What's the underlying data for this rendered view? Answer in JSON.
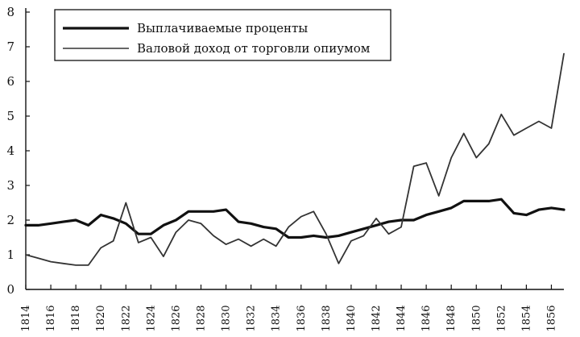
{
  "chart_data": {
    "type": "line",
    "title": "",
    "xlabel": "",
    "ylabel": "",
    "xlim": [
      1814,
      1857
    ],
    "ylim": [
      0,
      8
    ],
    "grid": false,
    "legend_position": "top-left",
    "y_ticks": [
      "0",
      "1",
      "2",
      "3",
      "4",
      "5",
      "6",
      "7",
      "8"
    ],
    "x_ticks": [
      "1814",
      "1816",
      "1818",
      "1820",
      "1822",
      "1824",
      "1826",
      "1828",
      "1830",
      "1832",
      "1834",
      "1836",
      "1838",
      "1840",
      "1842",
      "1844",
      "1846",
      "1848",
      "1850",
      "1852",
      "1854",
      "1856"
    ],
    "series": [
      {
        "name": "Выплачиваемые проценты",
        "color": "#111111",
        "style": "thick",
        "x": [
          1814,
          1815,
          1816,
          1817,
          1818,
          1819,
          1820,
          1821,
          1822,
          1823,
          1824,
          1825,
          1826,
          1827,
          1828,
          1829,
          1830,
          1831,
          1832,
          1833,
          1834,
          1835,
          1836,
          1837,
          1838,
          1839,
          1840,
          1841,
          1842,
          1843,
          1844,
          1845,
          1846,
          1847,
          1848,
          1849,
          1850,
          1851,
          1852,
          1853,
          1854,
          1855,
          1856,
          1857
        ],
        "y": [
          1.85,
          1.85,
          1.9,
          1.95,
          2.0,
          1.85,
          2.15,
          2.05,
          1.9,
          1.6,
          1.6,
          1.85,
          2.0,
          2.25,
          2.25,
          2.25,
          2.3,
          1.95,
          1.9,
          1.8,
          1.75,
          1.5,
          1.5,
          1.55,
          1.5,
          1.55,
          1.65,
          1.75,
          1.85,
          1.95,
          2.0,
          2.0,
          2.15,
          2.25,
          2.35,
          2.55,
          2.55,
          2.55,
          2.6,
          2.2,
          2.15,
          2.3,
          2.35,
          2.3
        ]
      },
      {
        "name": "Валовой доход от торговли опиумом",
        "color": "#333333",
        "style": "thin",
        "x": [
          1814,
          1815,
          1816,
          1817,
          1818,
          1819,
          1820,
          1821,
          1822,
          1823,
          1824,
          1825,
          1826,
          1827,
          1828,
          1829,
          1830,
          1831,
          1832,
          1833,
          1834,
          1835,
          1836,
          1837,
          1838,
          1839,
          1840,
          1841,
          1842,
          1843,
          1844,
          1845,
          1846,
          1847,
          1848,
          1849,
          1850,
          1851,
          1852,
          1853,
          1854,
          1855,
          1856,
          1857
        ],
        "y": [
          1.0,
          0.9,
          0.8,
          0.75,
          0.7,
          0.7,
          1.2,
          1.4,
          2.5,
          1.35,
          1.5,
          0.95,
          1.65,
          2.0,
          1.9,
          1.55,
          1.3,
          1.45,
          1.25,
          1.45,
          1.25,
          1.8,
          2.1,
          2.25,
          1.6,
          0.75,
          1.4,
          1.55,
          2.05,
          1.6,
          1.8,
          3.55,
          3.65,
          2.7,
          3.8,
          4.5,
          3.8,
          4.2,
          5.05,
          4.45,
          4.65,
          4.85,
          4.65,
          6.8
        ]
      }
    ]
  }
}
